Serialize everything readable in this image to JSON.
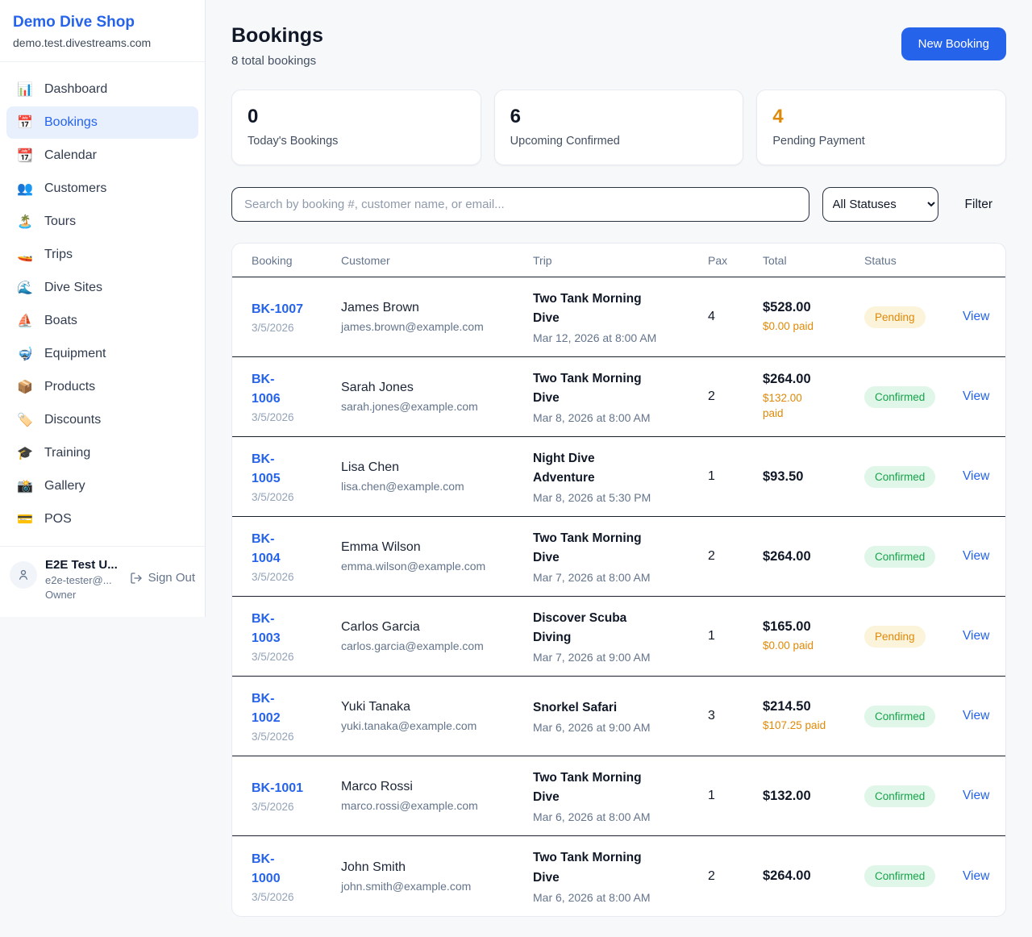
{
  "sidebar": {
    "shop_name": "Demo Dive Shop",
    "shop_domain": "demo.test.divestreams.com",
    "items": [
      {
        "icon": "📊",
        "name": "dashboard",
        "label": "Dashboard",
        "active": false
      },
      {
        "icon": "📅",
        "name": "bookings",
        "label": "Bookings",
        "active": true
      },
      {
        "icon": "📆",
        "name": "calendar",
        "label": "Calendar",
        "active": false
      },
      {
        "icon": "👥",
        "name": "customers",
        "label": "Customers",
        "active": false
      },
      {
        "icon": "🏝️",
        "name": "tours",
        "label": "Tours",
        "active": false
      },
      {
        "icon": "🚤",
        "name": "trips",
        "label": "Trips",
        "active": false
      },
      {
        "icon": "🌊",
        "name": "dive-sites",
        "label": "Dive Sites",
        "active": false
      },
      {
        "icon": "⛵",
        "name": "boats",
        "label": "Boats",
        "active": false
      },
      {
        "icon": "🤿",
        "name": "equipment",
        "label": "Equipment",
        "active": false
      },
      {
        "icon": "📦",
        "name": "products",
        "label": "Products",
        "active": false
      },
      {
        "icon": "🏷️",
        "name": "discounts",
        "label": "Discounts",
        "active": false
      },
      {
        "icon": "🎓",
        "name": "training",
        "label": "Training",
        "active": false
      },
      {
        "icon": "📸",
        "name": "gallery",
        "label": "Gallery",
        "active": false
      },
      {
        "icon": "💳",
        "name": "pos",
        "label": "POS",
        "active": false
      }
    ],
    "user": {
      "name": "E2E Test U...",
      "email": "e2e-tester@...",
      "role": "Owner",
      "sign_out_label": "Sign Out"
    }
  },
  "header": {
    "title": "Bookings",
    "subtitle": "8 total bookings",
    "new_booking_label": "New Booking"
  },
  "stats": [
    {
      "value": "0",
      "label": "Today's Bookings",
      "highlight": false
    },
    {
      "value": "6",
      "label": "Upcoming Confirmed",
      "highlight": false
    },
    {
      "value": "4",
      "label": "Pending Payment",
      "highlight": true
    }
  ],
  "filters": {
    "search_placeholder": "Search by booking #, customer name, or email...",
    "status_selected": "All Statuses",
    "filter_label": "Filter"
  },
  "table": {
    "columns": [
      "Booking",
      "Customer",
      "Trip",
      "Pax",
      "Total",
      "Status"
    ],
    "view_label": "View",
    "rows": [
      {
        "id": "BK-1007",
        "id_wrap": false,
        "date": "3/5/2026",
        "customer": "James Brown",
        "email": "james.brown@example.com",
        "trip": "Two Tank Morning Dive",
        "trip_datetime": "Mar 12, 2026 at 8:00 AM",
        "pax": "4",
        "total": "$528.00",
        "paid": "$0.00 paid",
        "paid_wrap": false,
        "status": "Pending"
      },
      {
        "id": "BK-1006",
        "id_wrap": true,
        "date": "3/5/2026",
        "customer": "Sarah Jones",
        "email": "sarah.jones@example.com",
        "trip": "Two Tank Morning Dive",
        "trip_datetime": "Mar 8, 2026 at 8:00 AM",
        "pax": "2",
        "total": "$264.00",
        "paid": "$132.00 paid",
        "paid_wrap": true,
        "status": "Confirmed"
      },
      {
        "id": "BK-1005",
        "id_wrap": true,
        "date": "3/5/2026",
        "customer": "Lisa Chen",
        "email": "lisa.chen@example.com",
        "trip": "Night Dive Adventure",
        "trip_datetime": "Mar 8, 2026 at 5:30 PM",
        "pax": "1",
        "total": "$93.50",
        "paid": "",
        "paid_wrap": false,
        "status": "Confirmed"
      },
      {
        "id": "BK-1004",
        "id_wrap": true,
        "date": "3/5/2026",
        "customer": "Emma Wilson",
        "email": "emma.wilson@example.com",
        "trip": "Two Tank Morning Dive",
        "trip_datetime": "Mar 7, 2026 at 8:00 AM",
        "pax": "2",
        "total": "$264.00",
        "paid": "",
        "paid_wrap": false,
        "status": "Confirmed"
      },
      {
        "id": "BK-1003",
        "id_wrap": true,
        "date": "3/5/2026",
        "customer": "Carlos Garcia",
        "email": "carlos.garcia@example.com",
        "trip": "Discover Scuba Diving",
        "trip_datetime": "Mar 7, 2026 at 9:00 AM",
        "pax": "1",
        "total": "$165.00",
        "paid": "$0.00 paid",
        "paid_wrap": false,
        "status": "Pending"
      },
      {
        "id": "BK-1002",
        "id_wrap": true,
        "date": "3/5/2026",
        "customer": "Yuki Tanaka",
        "email": "yuki.tanaka@example.com",
        "trip": "Snorkel Safari",
        "trip_datetime": "Mar 6, 2026 at 9:00 AM",
        "pax": "3",
        "total": "$214.50",
        "paid": "$107.25 paid",
        "paid_wrap": false,
        "status": "Confirmed"
      },
      {
        "id": "BK-1001",
        "id_wrap": false,
        "date": "3/5/2026",
        "customer": "Marco Rossi",
        "email": "marco.rossi@example.com",
        "trip": "Two Tank Morning Dive",
        "trip_datetime": "Mar 6, 2026 at 8:00 AM",
        "pax": "1",
        "total": "$132.00",
        "paid": "",
        "paid_wrap": false,
        "status": "Confirmed"
      },
      {
        "id": "BK-1000",
        "id_wrap": true,
        "date": "3/5/2026",
        "customer": "John Smith",
        "email": "john.smith@example.com",
        "trip": "Two Tank Morning Dive",
        "trip_datetime": "Mar 6, 2026 at 8:00 AM",
        "pax": "2",
        "total": "$264.00",
        "paid": "",
        "paid_wrap": false,
        "status": "Confirmed"
      }
    ]
  }
}
